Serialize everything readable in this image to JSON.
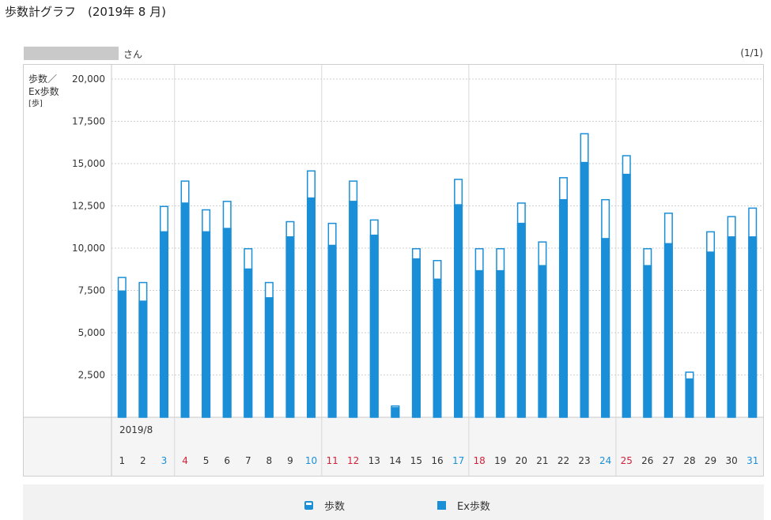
{
  "page": {
    "title": "歩数計グラフ　(2019年 8 月)",
    "user_suffix": "さん",
    "page_indicator": "(1/1)"
  },
  "legend": {
    "steps_label": "歩数",
    "ex_label": "Ex歩数"
  },
  "colors": {
    "bar_fill": "#1a8fd8",
    "bar_outline": "#1a8fd8",
    "weekday_text": "#333333",
    "saturday_text": "#1a8fd8",
    "sunday_holiday_text": "#d0223b"
  },
  "chart_data": {
    "type": "bar",
    "ylabel_lines": [
      "歩数／",
      "Ex歩数",
      "[歩]"
    ],
    "month_label": "2019/8",
    "ylim": [
      0,
      20000
    ],
    "yticks": [
      "2,500",
      "5,000",
      "7,500",
      "10,000",
      "12,500",
      "15,000",
      "17,500",
      "20,000"
    ],
    "categories": [
      "1",
      "2",
      "3",
      "4",
      "5",
      "6",
      "7",
      "8",
      "9",
      "10",
      "11",
      "12",
      "13",
      "14",
      "15",
      "16",
      "17",
      "18",
      "19",
      "20",
      "21",
      "22",
      "23",
      "24",
      "25",
      "26",
      "27",
      "28",
      "29",
      "30",
      "31"
    ],
    "day_colors": [
      "weekday",
      "weekday",
      "saturday",
      "sunday_holiday",
      "weekday",
      "weekday",
      "weekday",
      "weekday",
      "weekday",
      "saturday",
      "sunday_holiday",
      "sunday_holiday",
      "weekday",
      "weekday",
      "weekday",
      "weekday",
      "saturday",
      "sunday_holiday",
      "weekday",
      "weekday",
      "weekday",
      "weekday",
      "weekday",
      "saturday",
      "sunday_holiday",
      "weekday",
      "weekday",
      "weekday",
      "weekday",
      "weekday",
      "saturday"
    ],
    "week_separators_after": [
      "3",
      "10",
      "17",
      "24"
    ],
    "grid": true,
    "legend_position": "bottom",
    "series": [
      {
        "name": "歩数",
        "values": [
          8300,
          8000,
          12500,
          14000,
          12300,
          12800,
          10000,
          8000,
          11600,
          14600,
          11500,
          14000,
          11700,
          700,
          10000,
          9300,
          14100,
          10000,
          10000,
          12700,
          10400,
          14200,
          16800,
          12900,
          15500,
          10000,
          12100,
          2700,
          11000,
          11900,
          12400
        ]
      },
      {
        "name": "Ex歩数",
        "values": [
          7500,
          6900,
          11000,
          12700,
          11000,
          11200,
          8800,
          7100,
          10700,
          13000,
          10200,
          12800,
          10800,
          600,
          9400,
          8200,
          12600,
          8700,
          8700,
          11500,
          9000,
          12900,
          15100,
          10600,
          14400,
          9000,
          10300,
          2300,
          9800,
          10700,
          10700
        ]
      }
    ]
  }
}
